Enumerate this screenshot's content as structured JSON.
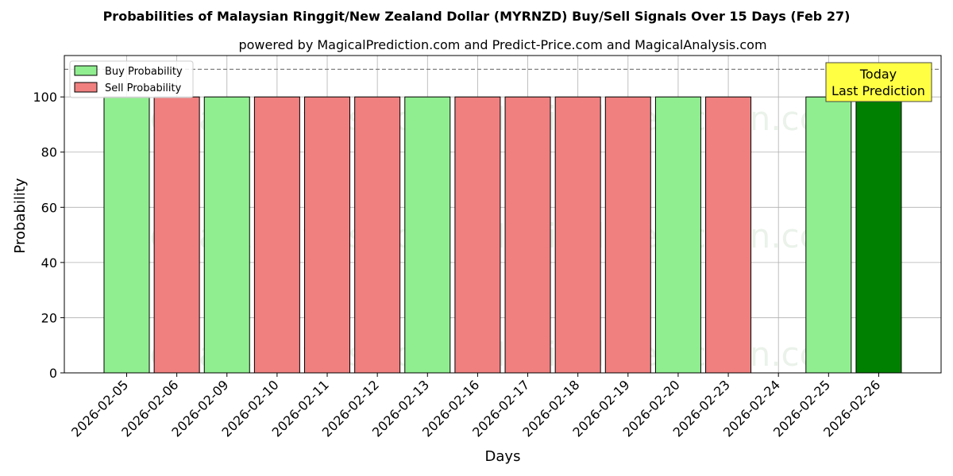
{
  "chart_data": {
    "type": "bar",
    "title": "Probabilities of Malaysian Ringgit/New Zealand Dollar (MYRNZD) Buy/Sell Signals Over 15 Days (Feb 27)",
    "subtitle": "powered by MagicalPrediction.com and Predict-Price.com and MagicalAnalysis.com",
    "xlabel": "Days",
    "ylabel": "Probability",
    "ylim": [
      0,
      115
    ],
    "yticks": [
      0,
      20,
      40,
      60,
      80,
      100
    ],
    "grid": true,
    "legend_position": "top-left",
    "reference_line": 110,
    "categories": [
      "2026-02-05",
      "2026-02-06",
      "2026-02-09",
      "2026-02-10",
      "2026-02-11",
      "2026-02-12",
      "2026-02-13",
      "2026-02-16",
      "2026-02-17",
      "2026-02-18",
      "2026-02-19",
      "2026-02-20",
      "2026-02-23",
      "2026-02-24",
      "2026-02-25",
      "2026-02-26"
    ],
    "series": [
      {
        "name": "Buy Probability",
        "color": "#90ee90",
        "values": [
          100,
          null,
          100,
          null,
          null,
          null,
          100,
          null,
          null,
          null,
          null,
          100,
          null,
          null,
          100,
          100
        ]
      },
      {
        "name": "Sell Probability",
        "color": "#f08080",
        "values": [
          null,
          100,
          null,
          100,
          100,
          100,
          null,
          100,
          100,
          100,
          100,
          null,
          100,
          null,
          null,
          null
        ]
      }
    ],
    "highlight": {
      "index": 15,
      "color": "#008000",
      "label_line1": "Today",
      "label_line2": "Last Prediction",
      "box_color": "#ffff44"
    },
    "watermarks": [
      "MagicalAnalysis.com",
      "MagicalPrediction.com"
    ]
  }
}
